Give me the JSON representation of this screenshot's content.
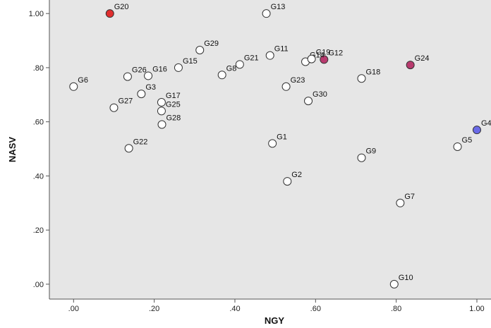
{
  "chart_data": {
    "type": "scatter",
    "title": "",
    "xlabel": "NGY",
    "ylabel": "NASV",
    "xlim": [
      -0.06,
      1.035
    ],
    "ylim": [
      -0.055,
      1.05
    ],
    "x_ticks": [
      {
        "value": 0.0,
        "label": ".00"
      },
      {
        "value": 0.2,
        "label": ".20"
      },
      {
        "value": 0.4,
        "label": ".40"
      },
      {
        "value": 0.6,
        "label": ".60"
      },
      {
        "value": 0.8,
        "label": ".80"
      },
      {
        "value": 1.0,
        "label": "1.00"
      }
    ],
    "y_ticks": [
      {
        "value": 0.0,
        "label": ".00"
      },
      {
        "value": 0.2,
        "label": ".20"
      },
      {
        "value": 0.4,
        "label": ".40"
      },
      {
        "value": 0.6,
        "label": ".60"
      },
      {
        "value": 0.8,
        "label": ".80"
      },
      {
        "value": 1.0,
        "label": "1.00"
      }
    ],
    "grid": false,
    "legend": "none",
    "colors": {
      "plot_background": "#e6e6e6",
      "default_marker_fill": "#ffffff",
      "marker_stroke": "#333333",
      "highlight_red": "#e02e2e",
      "highlight_purple": "#b83a6e",
      "highlight_blue": "#6a6ae8"
    },
    "points": [
      {
        "label": "G1",
        "x": 0.493,
        "y": 0.52
      },
      {
        "label": "G2",
        "x": 0.53,
        "y": 0.38
      },
      {
        "label": "G3",
        "x": 0.168,
        "y": 0.703
      },
      {
        "label": "G4",
        "x": 1.0,
        "y": 0.57,
        "fill": "#6a6ae8"
      },
      {
        "label": "G5",
        "x": 0.952,
        "y": 0.508
      },
      {
        "label": "G6",
        "x": 0.0,
        "y": 0.73
      },
      {
        "label": "G7",
        "x": 0.81,
        "y": 0.3
      },
      {
        "label": "G8",
        "x": 0.368,
        "y": 0.773
      },
      {
        "label": "G9",
        "x": 0.714,
        "y": 0.467
      },
      {
        "label": "G10",
        "x": 0.795,
        "y": 0.0
      },
      {
        "label": "G11",
        "x": 0.487,
        "y": 0.845
      },
      {
        "label": "G12",
        "x": 0.621,
        "y": 0.83,
        "fill": "#b83a6e"
      },
      {
        "label": "G13",
        "x": 0.478,
        "y": 1.0
      },
      {
        "label": "G14",
        "x": 0.575,
        "y": 0.822
      },
      {
        "label": "G15",
        "x": 0.26,
        "y": 0.8
      },
      {
        "label": "G16",
        "x": 0.185,
        "y": 0.77
      },
      {
        "label": "G17",
        "x": 0.218,
        "y": 0.672
      },
      {
        "label": "G18",
        "x": 0.714,
        "y": 0.76
      },
      {
        "label": "G19",
        "x": 0.59,
        "y": 0.832
      },
      {
        "label": "G20",
        "x": 0.09,
        "y": 1.0,
        "fill": "#e02e2e"
      },
      {
        "label": "G21",
        "x": 0.412,
        "y": 0.812
      },
      {
        "label": "G22",
        "x": 0.137,
        "y": 0.502
      },
      {
        "label": "G23",
        "x": 0.527,
        "y": 0.73
      },
      {
        "label": "G24",
        "x": 0.835,
        "y": 0.81,
        "fill": "#b83a6e"
      },
      {
        "label": "G25",
        "x": 0.218,
        "y": 0.64
      },
      {
        "label": "G26",
        "x": 0.134,
        "y": 0.767
      },
      {
        "label": "G27",
        "x": 0.1,
        "y": 0.652
      },
      {
        "label": "G28",
        "x": 0.219,
        "y": 0.59
      },
      {
        "label": "G29",
        "x": 0.313,
        "y": 0.865
      },
      {
        "label": "G30",
        "x": 0.582,
        "y": 0.677
      }
    ]
  }
}
